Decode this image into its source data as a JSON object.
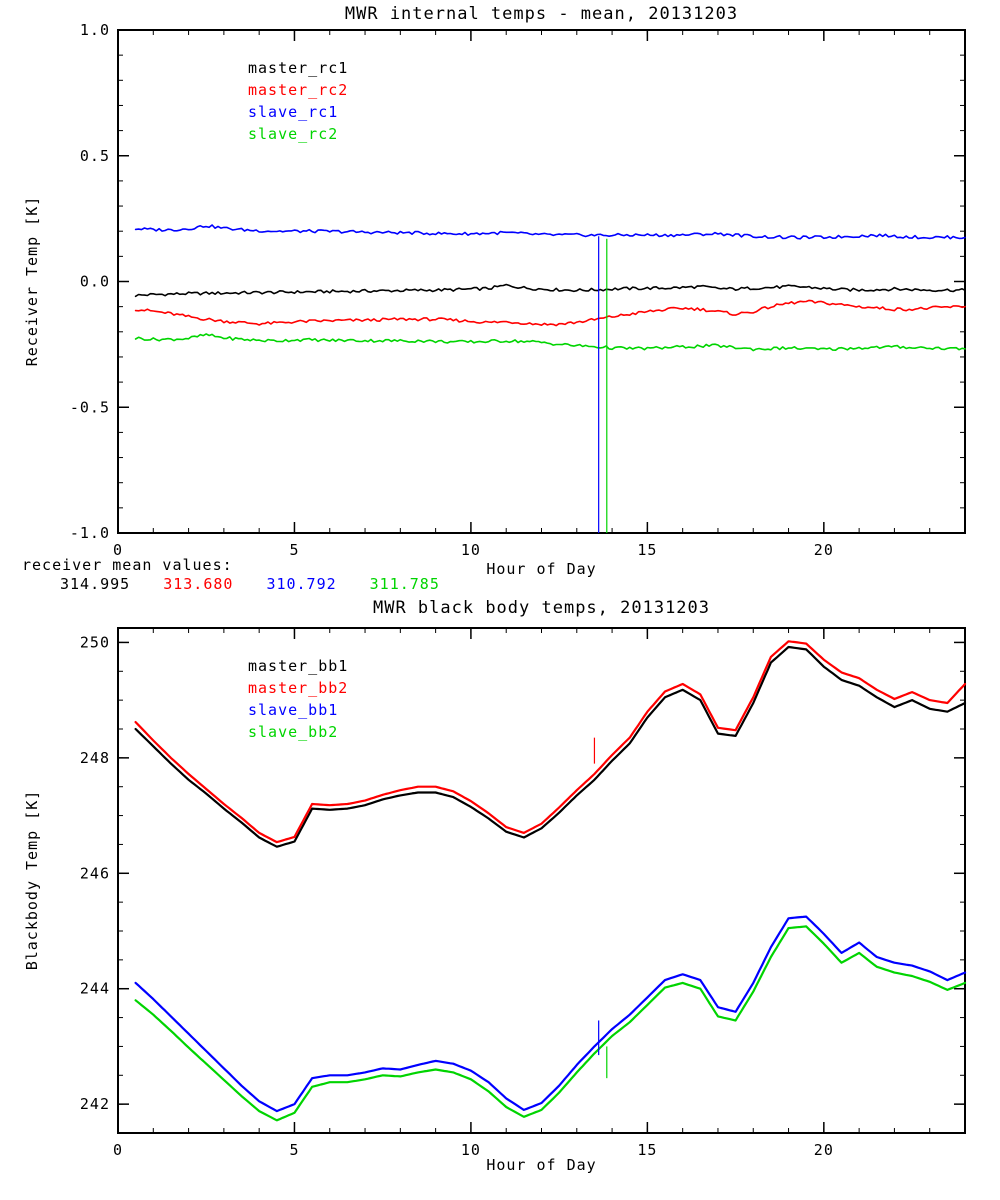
{
  "page": {
    "background": "#ffffff"
  },
  "mean_values": {
    "caption": "receiver mean values:",
    "values": [
      {
        "text": "314.995",
        "color": "#000000"
      },
      {
        "text": "313.680",
        "color": "#ff0000"
      },
      {
        "text": "310.792",
        "color": "#0000ff"
      },
      {
        "text": "311.785",
        "color": "#00d400"
      }
    ]
  },
  "chart_data": [
    {
      "type": "line",
      "title": "MWR internal temps - mean, 20131203",
      "xlabel": "Hour of Day",
      "ylabel": "Receiver Temp [K]",
      "xlim": [
        0,
        24
      ],
      "ylim": [
        -1.0,
        1.0
      ],
      "grid": false,
      "legend_position": "upper-left-inside",
      "xticks": {
        "values": [
          0,
          5,
          10,
          15,
          20
        ],
        "labels": [
          "0",
          "5",
          "10",
          "15",
          "20"
        ],
        "minor": 1
      },
      "yticks": {
        "values": [
          1.0,
          0.5,
          0.0,
          -0.5,
          -1.0
        ],
        "labels": [
          "1.0",
          "0.5",
          "0.0",
          "-0.5",
          "-1.0"
        ],
        "minor": 0.1
      },
      "x": [
        0.5,
        1.0,
        1.5,
        2.0,
        2.5,
        3.0,
        3.5,
        4.0,
        4.5,
        5.0,
        5.5,
        6.0,
        6.5,
        7.0,
        7.5,
        8.0,
        8.5,
        9.0,
        9.5,
        10.0,
        10.5,
        11.0,
        11.5,
        12.0,
        12.5,
        13.0,
        13.5,
        14.0,
        14.5,
        15.0,
        15.5,
        16.0,
        16.5,
        17.0,
        17.5,
        18.0,
        18.5,
        19.0,
        19.5,
        20.0,
        20.5,
        21.0,
        21.5,
        22.0,
        22.5,
        23.0,
        23.5,
        24.0
      ],
      "series": [
        {
          "name": "master_rc1",
          "color": "#000000",
          "line_width": 1.6,
          "noise": 0.006,
          "values": [
            -0.055,
            -0.052,
            -0.05,
            -0.048,
            -0.047,
            -0.046,
            -0.045,
            -0.044,
            -0.043,
            -0.042,
            -0.041,
            -0.04,
            -0.039,
            -0.038,
            -0.037,
            -0.036,
            -0.035,
            -0.034,
            -0.033,
            -0.03,
            -0.028,
            -0.015,
            -0.025,
            -0.03,
            -0.033,
            -0.035,
            -0.033,
            -0.03,
            -0.028,
            -0.027,
            -0.026,
            -0.024,
            -0.02,
            -0.028,
            -0.03,
            -0.026,
            -0.024,
            -0.02,
            -0.022,
            -0.028,
            -0.032,
            -0.034,
            -0.032,
            -0.03,
            -0.032,
            -0.034,
            -0.034,
            -0.035
          ]
        },
        {
          "name": "master_rc2",
          "color": "#ff0000",
          "line_width": 1.6,
          "noise": 0.006,
          "values": [
            -0.11,
            -0.118,
            -0.128,
            -0.14,
            -0.15,
            -0.158,
            -0.163,
            -0.168,
            -0.165,
            -0.16,
            -0.158,
            -0.156,
            -0.155,
            -0.154,
            -0.152,
            -0.15,
            -0.15,
            -0.15,
            -0.154,
            -0.158,
            -0.163,
            -0.16,
            -0.165,
            -0.17,
            -0.17,
            -0.162,
            -0.152,
            -0.14,
            -0.13,
            -0.12,
            -0.112,
            -0.106,
            -0.11,
            -0.12,
            -0.13,
            -0.12,
            -0.1,
            -0.086,
            -0.08,
            -0.085,
            -0.092,
            -0.1,
            -0.105,
            -0.11,
            -0.11,
            -0.106,
            -0.102,
            -0.1
          ]
        },
        {
          "name": "slave_rc1",
          "color": "#0000ff",
          "line_width": 1.6,
          "noise": 0.006,
          "values": [
            0.21,
            0.206,
            0.205,
            0.21,
            0.222,
            0.212,
            0.206,
            0.202,
            0.2,
            0.2,
            0.2,
            0.199,
            0.198,
            0.196,
            0.195,
            0.194,
            0.193,
            0.191,
            0.19,
            0.19,
            0.192,
            0.194,
            0.19,
            0.186,
            0.185,
            0.185,
            0.184,
            0.184,
            0.185,
            0.185,
            0.184,
            0.185,
            0.188,
            0.19,
            0.185,
            0.18,
            0.177,
            0.175,
            0.175,
            0.176,
            0.178,
            0.181,
            0.184,
            0.18,
            0.177,
            0.175,
            0.176,
            0.175
          ]
        },
        {
          "name": "slave_rc2",
          "color": "#00d400",
          "line_width": 1.6,
          "noise": 0.006,
          "values": [
            -0.225,
            -0.23,
            -0.23,
            -0.226,
            -0.212,
            -0.224,
            -0.23,
            -0.234,
            -0.236,
            -0.232,
            -0.232,
            -0.234,
            -0.234,
            -0.235,
            -0.235,
            -0.236,
            -0.236,
            -0.238,
            -0.24,
            -0.24,
            -0.238,
            -0.236,
            -0.238,
            -0.242,
            -0.25,
            -0.255,
            -0.259,
            -0.264,
            -0.266,
            -0.266,
            -0.263,
            -0.26,
            -0.257,
            -0.255,
            -0.263,
            -0.269,
            -0.267,
            -0.264,
            -0.267,
            -0.27,
            -0.267,
            -0.264,
            -0.262,
            -0.26,
            -0.262,
            -0.264,
            -0.266,
            -0.268
          ]
        }
      ],
      "vlines": [
        {
          "x": 13.62,
          "y1": -1.0,
          "y2": 0.18,
          "color": "#0000ff"
        },
        {
          "x": 13.85,
          "y1": -1.0,
          "y2": 0.17,
          "color": "#00d400"
        }
      ]
    },
    {
      "type": "line",
      "title": "MWR black body temps, 20131203",
      "xlabel": "Hour of Day",
      "ylabel": "Blackbody Temp [K]",
      "xlim": [
        0,
        24
      ],
      "ylim": [
        241.5,
        250.25
      ],
      "grid": false,
      "legend_position": "upper-left-inside",
      "xticks": {
        "values": [
          0,
          5,
          10,
          15,
          20
        ],
        "labels": [
          "0",
          "5",
          "10",
          "15",
          "20"
        ],
        "minor": 1
      },
      "yticks": {
        "values": [
          250,
          248,
          246,
          244,
          242
        ],
        "labels": [
          "250",
          "248",
          "246",
          "244",
          "242"
        ],
        "minor": 0.5
      },
      "x": [
        0.5,
        1.0,
        1.5,
        2.0,
        2.5,
        3.0,
        3.5,
        4.0,
        4.5,
        5.0,
        5.5,
        6.0,
        6.5,
        7.0,
        7.5,
        8.0,
        8.5,
        9.0,
        9.5,
        10.0,
        10.5,
        11.0,
        11.5,
        12.0,
        12.5,
        13.0,
        13.5,
        14.0,
        14.5,
        15.0,
        15.5,
        16.0,
        16.5,
        17.0,
        17.5,
        18.0,
        18.5,
        19.0,
        19.5,
        20.0,
        20.5,
        21.0,
        21.5,
        22.0,
        22.5,
        23.0,
        23.5,
        24.0
      ],
      "series": [
        {
          "name": "master_bb1",
          "color": "#000000",
          "line_width": 2.2,
          "noise": 0,
          "values": [
            248.5,
            248.2,
            247.9,
            247.62,
            247.38,
            247.12,
            246.88,
            246.62,
            246.46,
            246.55,
            247.12,
            247.1,
            247.12,
            247.18,
            247.28,
            247.35,
            247.4,
            247.4,
            247.32,
            247.15,
            246.95,
            246.72,
            246.62,
            246.78,
            247.05,
            247.35,
            247.62,
            247.95,
            248.25,
            248.7,
            249.05,
            249.18,
            249.0,
            248.42,
            248.38,
            248.95,
            249.65,
            249.92,
            249.88,
            249.58,
            249.35,
            249.25,
            249.05,
            248.88,
            249.0,
            248.85,
            248.8,
            248.95
          ]
        },
        {
          "name": "master_bb2",
          "color": "#ff0000",
          "line_width": 2.2,
          "noise": 0,
          "values": [
            248.62,
            248.3,
            248.0,
            247.72,
            247.46,
            247.2,
            246.96,
            246.7,
            246.54,
            246.63,
            247.2,
            247.18,
            247.2,
            247.26,
            247.36,
            247.44,
            247.5,
            247.5,
            247.42,
            247.25,
            247.04,
            246.8,
            246.7,
            246.86,
            247.14,
            247.44,
            247.72,
            248.05,
            248.35,
            248.8,
            249.15,
            249.28,
            249.1,
            248.52,
            248.48,
            249.05,
            249.75,
            250.02,
            249.98,
            249.7,
            249.48,
            249.38,
            249.18,
            249.02,
            249.14,
            249.0,
            248.95,
            249.28
          ]
        },
        {
          "name": "slave_bb1",
          "color": "#0000ff",
          "line_width": 2.2,
          "noise": 0,
          "values": [
            244.1,
            243.82,
            243.52,
            243.22,
            242.92,
            242.62,
            242.32,
            242.05,
            241.88,
            242.0,
            242.45,
            242.5,
            242.5,
            242.55,
            242.62,
            242.6,
            242.68,
            242.75,
            242.7,
            242.58,
            242.38,
            242.1,
            241.9,
            242.02,
            242.32,
            242.68,
            243.0,
            243.3,
            243.55,
            243.85,
            244.15,
            244.25,
            244.15,
            243.68,
            243.6,
            244.1,
            244.72,
            245.22,
            245.25,
            244.95,
            244.62,
            244.8,
            244.55,
            244.45,
            244.4,
            244.3,
            244.15,
            244.28
          ]
        },
        {
          "name": "slave_bb2",
          "color": "#00d400",
          "line_width": 2.2,
          "noise": 0,
          "values": [
            243.8,
            243.55,
            243.27,
            242.98,
            242.7,
            242.42,
            242.14,
            241.88,
            241.72,
            241.85,
            242.3,
            242.38,
            242.38,
            242.43,
            242.5,
            242.48,
            242.55,
            242.6,
            242.55,
            242.43,
            242.22,
            241.95,
            241.78,
            241.9,
            242.2,
            242.55,
            242.88,
            243.18,
            243.42,
            243.72,
            244.02,
            244.1,
            244.0,
            243.52,
            243.45,
            243.95,
            244.55,
            245.05,
            245.08,
            244.78,
            244.45,
            244.62,
            244.38,
            244.28,
            244.22,
            244.12,
            243.98,
            244.1
          ]
        }
      ],
      "vlines": [
        {
          "x": 13.5,
          "y1": 247.9,
          "y2": 248.35,
          "color": "#ff0000"
        },
        {
          "x": 13.62,
          "y1": 242.85,
          "y2": 243.45,
          "color": "#0000ff"
        },
        {
          "x": 13.85,
          "y1": 242.45,
          "y2": 243.0,
          "color": "#00d400"
        }
      ]
    }
  ]
}
